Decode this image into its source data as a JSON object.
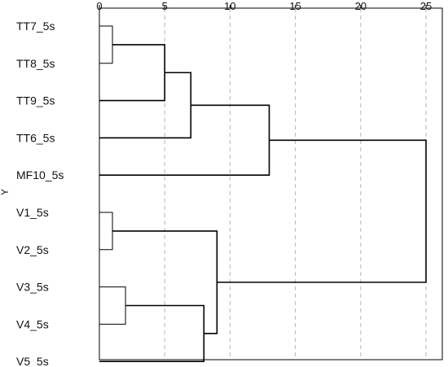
{
  "chart_data": {
    "type": "dendrogram",
    "orientation": "horizontal",
    "ylabel": "Y",
    "xlim": [
      0,
      27
    ],
    "xticks": [
      0,
      5,
      10,
      15,
      20,
      25
    ],
    "grid": true,
    "leaves": [
      "TT7_5s",
      "TT8_5s",
      "TT9_5s",
      "TT6_5s",
      "MF10_5s",
      "V1_5s",
      "V2_5s",
      "V3_5s",
      "V4_5s",
      "V5_5s"
    ],
    "merges": [
      {
        "id": "c1",
        "children": [
          "TT7_5s",
          "TT8_5s"
        ],
        "height": 1
      },
      {
        "id": "c2",
        "children": [
          "c1",
          "TT9_5s"
        ],
        "height": 5
      },
      {
        "id": "c3",
        "children": [
          "c2",
          "TT6_5s"
        ],
        "height": 7
      },
      {
        "id": "c4",
        "children": [
          "c3",
          "MF10_5s"
        ],
        "height": 13
      },
      {
        "id": "c5",
        "children": [
          "V1_5s",
          "V2_5s"
        ],
        "height": 1
      },
      {
        "id": "c6",
        "children": [
          "V3_5s",
          "V4_5s"
        ],
        "height": 2
      },
      {
        "id": "c7",
        "children": [
          "c6",
          "V5_5s"
        ],
        "height": 8
      },
      {
        "id": "c8",
        "children": [
          "c5",
          "c7"
        ],
        "height": 9
      },
      {
        "id": "c9",
        "children": [
          "c4",
          "c8"
        ],
        "height": 25
      }
    ]
  }
}
